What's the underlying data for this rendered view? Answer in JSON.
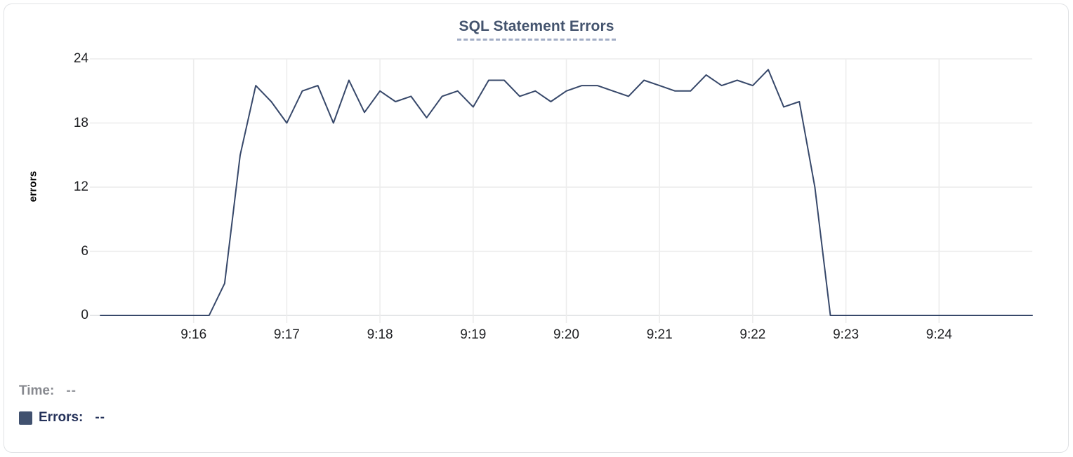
{
  "chart": {
    "title": "SQL Statement Errors",
    "y_axis_title": "errors"
  },
  "tooltip": {
    "time_label": "Time:",
    "time_value": "--",
    "errors_label": "Errors:",
    "errors_value": "--"
  },
  "colors": {
    "line": "#37486a",
    "legend_swatch": "#41516f",
    "title_text": "#44546e",
    "title_underline": "#a3aec6",
    "grid": "#ececec",
    "zero_line": "#dcdee1",
    "axis_text": "#202124",
    "card_border": "#e0e2e5"
  },
  "chart_data": {
    "type": "line",
    "title": "SQL Statement Errors",
    "xlabel": "",
    "ylabel": "errors",
    "x_range": [
      "9:15:00",
      "9:25:00"
    ],
    "ylim": [
      0,
      24
    ],
    "y_ticks": [
      0,
      6,
      12,
      18,
      24
    ],
    "x_ticks": [
      "9:16",
      "9:17",
      "9:18",
      "9:19",
      "9:20",
      "9:21",
      "9:22",
      "9:23",
      "9:24"
    ],
    "grid": true,
    "legend_position": "bottom-left",
    "series": [
      {
        "name": "Errors",
        "color": "#37486a",
        "t": [
          "9:15:00",
          "9:15:10",
          "9:15:20",
          "9:15:30",
          "9:15:40",
          "9:15:50",
          "9:16:00",
          "9:16:10",
          "9:16:20",
          "9:16:30",
          "9:16:40",
          "9:16:50",
          "9:17:00",
          "9:17:10",
          "9:17:20",
          "9:17:30",
          "9:17:40",
          "9:17:50",
          "9:18:00",
          "9:18:10",
          "9:18:20",
          "9:18:30",
          "9:18:40",
          "9:18:50",
          "9:19:00",
          "9:19:10",
          "9:19:20",
          "9:19:30",
          "9:19:40",
          "9:19:50",
          "9:20:00",
          "9:20:10",
          "9:20:20",
          "9:20:30",
          "9:20:40",
          "9:20:50",
          "9:21:00",
          "9:21:10",
          "9:21:20",
          "9:21:30",
          "9:21:40",
          "9:21:50",
          "9:22:00",
          "9:22:10",
          "9:22:20",
          "9:22:30",
          "9:22:40",
          "9:22:50",
          "9:23:00",
          "9:23:10",
          "9:23:20",
          "9:23:30",
          "9:23:40",
          "9:23:50",
          "9:24:00",
          "9:24:10",
          "9:24:20",
          "9:24:30",
          "9:24:40",
          "9:24:50",
          "9:25:00"
        ],
        "values": [
          0,
          0,
          0,
          0,
          0,
          0,
          0,
          0,
          3,
          15,
          21.5,
          20,
          18,
          21,
          21.5,
          18,
          22,
          19,
          21,
          20,
          20.5,
          18.5,
          20.5,
          21,
          19.5,
          22,
          22,
          20.5,
          21,
          20,
          21,
          21.5,
          21.5,
          21,
          20.5,
          22,
          21.5,
          21,
          21,
          22.5,
          21.5,
          22,
          21.5,
          23,
          19.5,
          20,
          12,
          0,
          0,
          0,
          0,
          0,
          0,
          0,
          0,
          0,
          0,
          0,
          0,
          0,
          0
        ]
      }
    ]
  }
}
